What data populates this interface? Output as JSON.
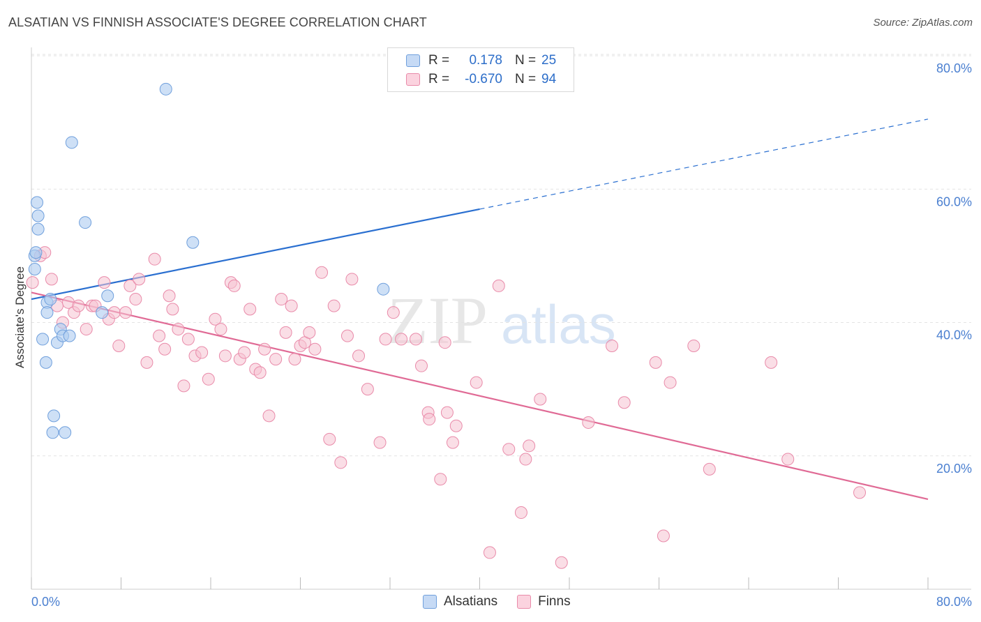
{
  "title": "ALSATIAN VS FINNISH ASSOCIATE'S DEGREE CORRELATION CHART",
  "source": "Source: ZipAtlas.com",
  "watermark": {
    "zip": "ZIP",
    "atlas": "atlas"
  },
  "legend": {
    "rows": [
      {
        "r_label": "R =",
        "r_value": "0.178",
        "n_label": "N =",
        "n_value": "25"
      },
      {
        "r_label": "R =",
        "r_value": "-0.670",
        "n_label": "N =",
        "n_value": "94"
      }
    ]
  },
  "bottom_legend": {
    "alsatians": "Alsatians",
    "finns": "Finns"
  },
  "colors": {
    "alsatian_fill": "#aecbf0",
    "alsatian_stroke": "#6f9fdc",
    "alsatian_line": "#2a6fd0",
    "finn_fill": "#f6c2d2",
    "finn_stroke": "#e98aa9",
    "finn_line": "#e06a95",
    "axis_text": "#4a7fd0",
    "grid": "#e3e3e3"
  },
  "chart_data": {
    "type": "scatter",
    "title": "ALSATIAN VS FINNISH ASSOCIATE'S DEGREE CORRELATION CHART",
    "xlabel": "",
    "ylabel": "Associate's Degree",
    "xlim": [
      0,
      80
    ],
    "ylim": [
      0,
      82
    ],
    "x_tick_labels": [
      "0.0%",
      "80.0%"
    ],
    "y_ticks": [
      20,
      40,
      60,
      80
    ],
    "y_tick_labels": [
      "20.0%",
      "40.0%",
      "60.0%",
      "80.0%"
    ],
    "series": [
      {
        "name": "Alsatians",
        "r": 0.178,
        "n": 25,
        "trend": {
          "x0": 0,
          "y0": 43.5,
          "x1": 40,
          "y1": 57,
          "x_dash_end": 80,
          "y_dash_end": 70.5
        },
        "points": [
          [
            0.5,
            58.0
          ],
          [
            0.6,
            56.0
          ],
          [
            0.6,
            54.0
          ],
          [
            0.3,
            50.0
          ],
          [
            0.3,
            48.0
          ],
          [
            1.0,
            37.5
          ],
          [
            1.3,
            34.0
          ],
          [
            1.4,
            43.0
          ],
          [
            1.4,
            41.5
          ],
          [
            1.7,
            43.5
          ],
          [
            2.0,
            26.0
          ],
          [
            1.9,
            23.5
          ],
          [
            2.3,
            37.0
          ],
          [
            2.6,
            39.0
          ],
          [
            2.8,
            38.0
          ],
          [
            3.0,
            23.5
          ],
          [
            3.4,
            38.0
          ],
          [
            3.6,
            67.0
          ],
          [
            4.8,
            55.0
          ],
          [
            6.3,
            41.5
          ],
          [
            6.8,
            44.0
          ],
          [
            12.0,
            75.0
          ],
          [
            14.4,
            52.0
          ],
          [
            31.4,
            45.0
          ],
          [
            0.4,
            50.5
          ]
        ]
      },
      {
        "name": "Finns",
        "r": -0.67,
        "n": 94,
        "trend": {
          "x0": 0,
          "y0": 44.5,
          "x1": 80,
          "y1": 13.5
        },
        "points": [
          [
            0.1,
            46.0
          ],
          [
            0.8,
            50.0
          ],
          [
            1.2,
            50.5
          ],
          [
            1.8,
            46.5
          ],
          [
            2.3,
            42.5
          ],
          [
            2.8,
            40.0
          ],
          [
            3.3,
            43.0
          ],
          [
            3.8,
            41.5
          ],
          [
            4.2,
            42.5
          ],
          [
            4.9,
            39.0
          ],
          [
            5.4,
            42.5
          ],
          [
            5.7,
            42.5
          ],
          [
            6.5,
            46.0
          ],
          [
            6.9,
            40.5
          ],
          [
            7.4,
            41.5
          ],
          [
            7.8,
            36.5
          ],
          [
            8.4,
            41.5
          ],
          [
            8.8,
            45.5
          ],
          [
            9.3,
            43.5
          ],
          [
            9.6,
            46.5
          ],
          [
            10.3,
            34.0
          ],
          [
            11.0,
            49.5
          ],
          [
            11.4,
            38.0
          ],
          [
            11.9,
            36.0
          ],
          [
            12.3,
            44.0
          ],
          [
            12.6,
            42.0
          ],
          [
            13.1,
            39.0
          ],
          [
            13.6,
            30.5
          ],
          [
            14.0,
            37.5
          ],
          [
            14.6,
            35.0
          ],
          [
            15.2,
            35.5
          ],
          [
            15.8,
            31.5
          ],
          [
            16.4,
            40.5
          ],
          [
            16.9,
            39.0
          ],
          [
            17.3,
            35.0
          ],
          [
            17.8,
            46.0
          ],
          [
            18.1,
            45.5
          ],
          [
            18.6,
            34.5
          ],
          [
            19.0,
            35.5
          ],
          [
            19.5,
            42.0
          ],
          [
            20.0,
            33.0
          ],
          [
            20.4,
            32.5
          ],
          [
            20.8,
            36.0
          ],
          [
            21.2,
            26.0
          ],
          [
            21.8,
            34.5
          ],
          [
            22.3,
            43.5
          ],
          [
            22.7,
            38.5
          ],
          [
            23.2,
            42.5
          ],
          [
            23.5,
            34.5
          ],
          [
            24.0,
            36.5
          ],
          [
            24.4,
            37.0
          ],
          [
            24.8,
            38.5
          ],
          [
            25.3,
            36.0
          ],
          [
            25.9,
            47.5
          ],
          [
            26.6,
            22.5
          ],
          [
            27.0,
            42.5
          ],
          [
            27.6,
            19.0
          ],
          [
            28.2,
            38.0
          ],
          [
            28.6,
            46.5
          ],
          [
            29.2,
            35.0
          ],
          [
            30.0,
            30.0
          ],
          [
            31.1,
            22.0
          ],
          [
            31.6,
            37.5
          ],
          [
            32.3,
            41.5
          ],
          [
            33.0,
            37.5
          ],
          [
            34.3,
            37.5
          ],
          [
            34.8,
            33.5
          ],
          [
            35.4,
            26.5
          ],
          [
            35.5,
            25.5
          ],
          [
            36.5,
            16.5
          ],
          [
            36.9,
            37.0
          ],
          [
            37.1,
            26.5
          ],
          [
            37.6,
            22.0
          ],
          [
            37.9,
            24.5
          ],
          [
            39.7,
            31.0
          ],
          [
            40.9,
            5.5
          ],
          [
            41.7,
            45.5
          ],
          [
            42.6,
            21.0
          ],
          [
            43.7,
            11.5
          ],
          [
            44.1,
            19.5
          ],
          [
            44.4,
            21.5
          ],
          [
            45.4,
            28.5
          ],
          [
            47.3,
            4.0
          ],
          [
            49.7,
            25.0
          ],
          [
            51.8,
            36.5
          ],
          [
            52.9,
            28.0
          ],
          [
            55.7,
            34.0
          ],
          [
            56.4,
            8.0
          ],
          [
            57.0,
            31.0
          ],
          [
            59.1,
            36.5
          ],
          [
            60.5,
            18.0
          ],
          [
            66.0,
            34.0
          ],
          [
            67.5,
            19.5
          ],
          [
            73.9,
            14.5
          ]
        ]
      }
    ]
  }
}
